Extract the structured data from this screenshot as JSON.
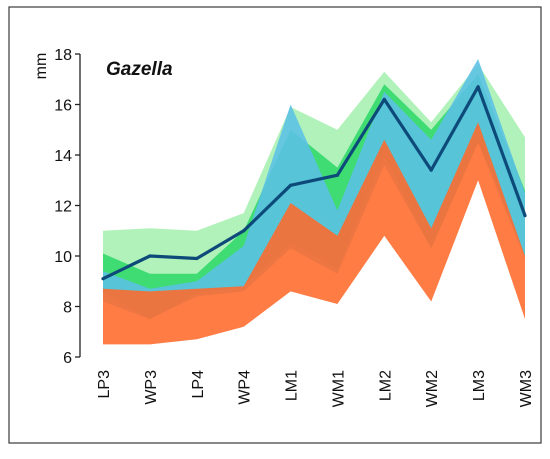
{
  "chart_data": {
    "type": "area",
    "title": "Gazella",
    "ylabel": "mm",
    "xlabel": "",
    "categories": [
      "LP3",
      "WP3",
      "LP4",
      "WP4",
      "LM1",
      "WM1",
      "LM2",
      "WM2",
      "LM3",
      "WM3"
    ],
    "ylim": [
      6,
      18
    ],
    "yticks": [
      6,
      8,
      10,
      12,
      14,
      16,
      18
    ],
    "grid": false,
    "series": [
      {
        "kind": "band",
        "color": "#a6f0b0",
        "upper": [
          11.0,
          11.1,
          11.0,
          11.7,
          15.9,
          15.0,
          17.3,
          15.3,
          17.6,
          14.7
        ],
        "lower": [
          8.6,
          7.5,
          8.6,
          8.9,
          10.6,
          9.5,
          14.2,
          10.3,
          14.5,
          10.0
        ]
      },
      {
        "kind": "band",
        "color": "#2fd86a",
        "upper": [
          10.1,
          9.3,
          9.3,
          11.0,
          15.0,
          13.5,
          16.8,
          15.0,
          17.2,
          12.6
        ],
        "lower": [
          8.6,
          7.5,
          8.5,
          8.8,
          10.5,
          9.5,
          14.0,
          10.3,
          14.5,
          10.0
        ]
      },
      {
        "kind": "band",
        "color": "#5bc0e6",
        "upper": [
          9.4,
          8.7,
          9.0,
          10.4,
          16.0,
          11.8,
          16.5,
          14.6,
          17.8,
          12.5
        ],
        "lower": [
          8.2,
          7.5,
          8.4,
          8.6,
          10.3,
          9.3,
          13.6,
          10.3,
          14.5,
          9.9
        ]
      },
      {
        "kind": "band",
        "color": "#ff6a2a",
        "upper": [
          8.7,
          8.6,
          8.7,
          8.8,
          12.1,
          10.8,
          14.6,
          11.1,
          15.3,
          10.0
        ],
        "lower": [
          6.5,
          6.5,
          6.7,
          7.2,
          8.6,
          8.1,
          10.8,
          8.2,
          13.0,
          7.5
        ]
      },
      {
        "kind": "line",
        "color": "#0d4a7a",
        "values": [
          9.1,
          10.0,
          9.9,
          11.0,
          12.8,
          13.2,
          16.2,
          13.4,
          16.7,
          11.6
        ]
      }
    ]
  }
}
